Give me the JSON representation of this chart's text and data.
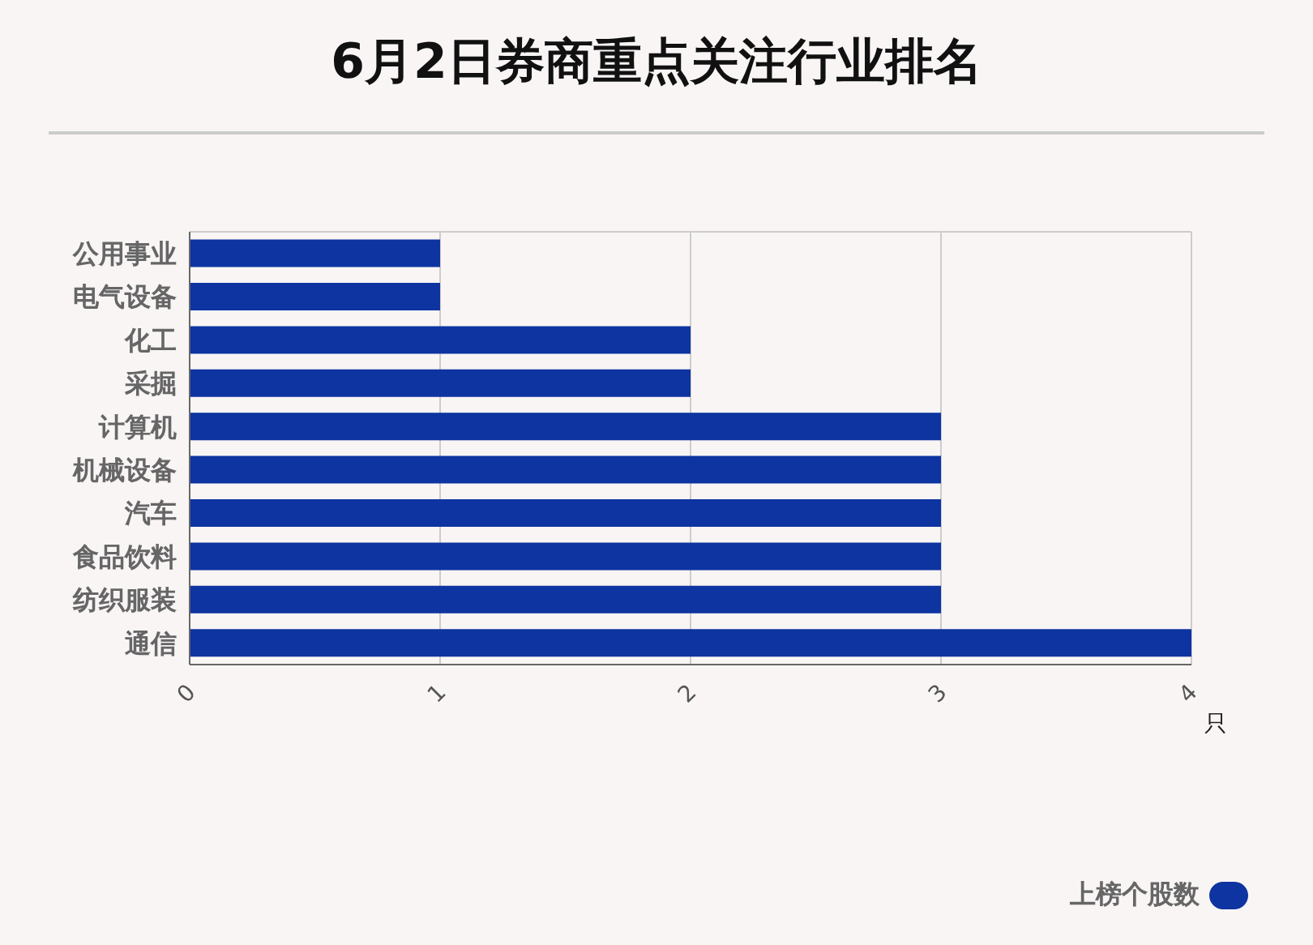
{
  "chart_data": {
    "type": "bar",
    "orientation": "horizontal",
    "title": "6月2日券商重点关注行业排名",
    "xlabel": "只",
    "categories": [
      "公用事业",
      "电气设备",
      "化工",
      "采掘",
      "计算机",
      "机械设备",
      "汽车",
      "食品饮料",
      "纺织服装",
      "通信"
    ],
    "series": [
      {
        "name": "上榜个股数",
        "color": "#0d34a0",
        "values": [
          1,
          1,
          2,
          2,
          3,
          3,
          3,
          3,
          3,
          4
        ]
      }
    ],
    "xlim": [
      0,
      4
    ],
    "xticks": [
      0,
      1,
      2,
      3,
      4
    ],
    "grid": "x",
    "legend": "bottom right"
  }
}
